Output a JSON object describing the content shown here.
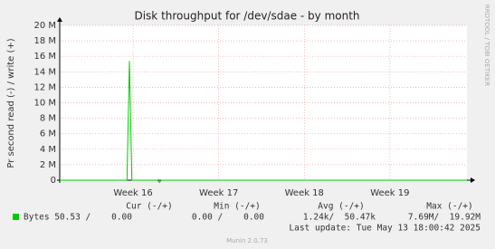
{
  "chart_data": {
    "type": "line",
    "title": "Disk throughput for /dev/sdae - by month",
    "y_label": "Pr second read (-) / write (+)",
    "side_text": "RRDTOOL / TOBI OETIKER",
    "footer": "Munin 2.0.73",
    "last_update": "Last update: Tue May 13 18:00:42 2025",
    "xlim": [
      -6,
      27.3
    ],
    "xticks": [
      {
        "value": 0,
        "label": "Week 16"
      },
      {
        "value": 7,
        "label": "Week 17"
      },
      {
        "value": 14,
        "label": "Week 18"
      },
      {
        "value": 21,
        "label": "Week 19"
      }
    ],
    "ylim": [
      0,
      20000000
    ],
    "yticks": [
      0,
      {
        "value": 2000000,
        "label": "2 M"
      },
      {
        "value": 4000000,
        "label": "4 M"
      },
      {
        "value": 6000000,
        "label": "6 M"
      },
      {
        "value": 8000000,
        "label": "8 M"
      },
      {
        "value": 10000000,
        "label": "10 M"
      },
      {
        "value": 12000000,
        "label": "12 M"
      },
      {
        "value": 14000000,
        "label": "14 M"
      },
      {
        "value": 16000000,
        "label": "16 M"
      },
      {
        "value": 18000000,
        "label": "18 M"
      },
      {
        "value": 20000000,
        "label": "20 M"
      }
    ],
    "grid": true,
    "series": [
      {
        "name": "Bytes",
        "color": "#00cc00",
        "x": [
          -6,
          -0.5,
          -0.3,
          -0.1,
          2.0,
          2.15,
          2.3,
          27.3
        ],
        "values": [
          0,
          0,
          15400000,
          0,
          0,
          -300000,
          0,
          0
        ]
      }
    ],
    "legend_table": {
      "headers": [
        "Cur (-/+)",
        "Min (-/+)",
        "Avg (-/+)",
        "Max (-/+)"
      ],
      "cells": [
        "50.53 /    0.00",
        "0.00 /    0.00",
        "1.24k/  50.47k",
        "7.69M/  19.92M"
      ]
    }
  }
}
